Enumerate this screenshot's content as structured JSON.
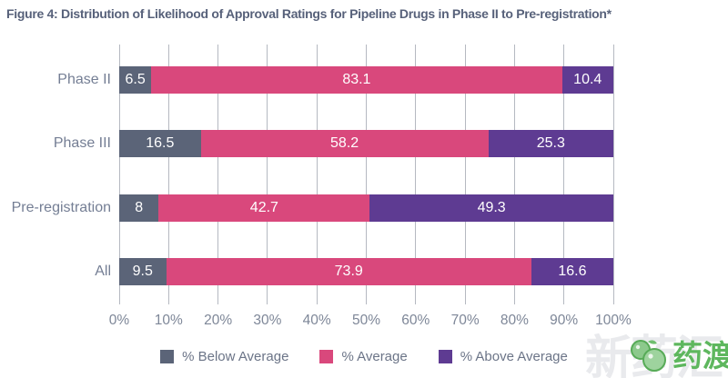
{
  "title": "Figure 4: Distribution of Likelihood of Approval Ratings for Pipeline Drugs in Phase II to Pre-registration*",
  "chart_data": {
    "type": "bar",
    "orientation": "horizontal",
    "stacked": true,
    "title": "Figure 4: Distribution of Likelihood of Approval Ratings for Pipeline Drugs in Phase II to Pre-registration*",
    "categories": [
      "Phase II",
      "Phase III",
      "Pre-registration",
      "All"
    ],
    "series": [
      {
        "name": "% Below Average",
        "color": "#5b6478",
        "values": [
          6.5,
          16.5,
          8,
          9.5
        ]
      },
      {
        "name": "% Average",
        "color": "#d9487c",
        "values": [
          83.1,
          58.2,
          42.7,
          73.9
        ]
      },
      {
        "name": "% Above Average",
        "color": "#5e3b92",
        "values": [
          10.4,
          25.3,
          49.3,
          16.6
        ]
      }
    ],
    "value_labels": [
      [
        "6.5",
        "83.1",
        "10.4"
      ],
      [
        "16.5",
        "58.2",
        "25.3"
      ],
      [
        "8",
        "42.7",
        "49.3"
      ],
      [
        "9.5",
        "73.9",
        "16.6"
      ]
    ],
    "x_ticks": [
      "0%",
      "10%",
      "20%",
      "30%",
      "40%",
      "50%",
      "60%",
      "70%",
      "80%",
      "90%",
      "100%"
    ],
    "xlim": [
      0,
      100
    ],
    "grid": true,
    "legend_position": "bottom",
    "bar_label_color": "#ffffff",
    "gridline_color": "#b5b9c1"
  },
  "watermark": {
    "background_text": "新药汇",
    "logo_text": "药渡",
    "logo_color": "#5eb75e"
  }
}
